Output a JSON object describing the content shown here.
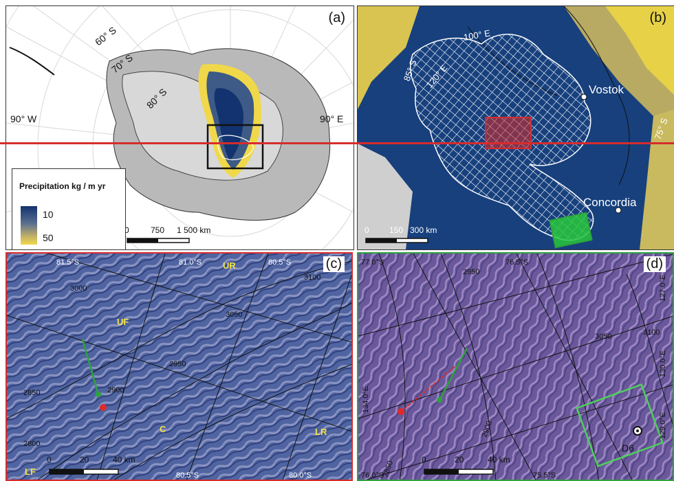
{
  "panels": {
    "a": {
      "label": "(a)",
      "lat_labels": [
        "60° S",
        "70° S",
        "80° S"
      ],
      "lon_west": "90° W",
      "lon_east": "90° E",
      "scale": [
        "0",
        "750",
        "1 500 km"
      ],
      "legend": {
        "title": "Precipitation kg / m  yr",
        "high": "10",
        "low": "50",
        "colors": {
          "high": "#12336f",
          "low": "#f0d84a"
        }
      }
    },
    "b": {
      "label": "(b)",
      "lon_labels": [
        "100° E",
        "120° E"
      ],
      "lat_labels": [
        "85° S",
        "75° S"
      ],
      "stations": [
        "Vostok",
        "Concordia"
      ],
      "scale": [
        "0",
        "150",
        "300 km"
      ]
    },
    "c": {
      "label": "(c)",
      "lat_labels": [
        "81.5°S",
        "81.0°S",
        "80.5°S",
        "80.5°S",
        "80.0°S"
      ],
      "contours": [
        "3000",
        "3050",
        "3100",
        "2950",
        "2900",
        "2850",
        "2800"
      ],
      "annotations": [
        "UR",
        "UF",
        "C",
        "LF",
        "LR"
      ],
      "scale": [
        "0",
        "20",
        "40 km"
      ]
    },
    "d": {
      "label": "(d)",
      "lat_labels": [
        "77.0°S",
        "76.5°S",
        "76.0°S",
        "75.5°S"
      ],
      "lon_labels": [
        "127.0°E",
        "134.0°E",
        "130.0°E",
        "129.0°E"
      ],
      "contours": [
        "2950",
        "2900",
        "3050",
        "3100",
        "2850"
      ],
      "station": "D6",
      "scale": [
        "0",
        "20",
        "40 km"
      ]
    }
  }
}
